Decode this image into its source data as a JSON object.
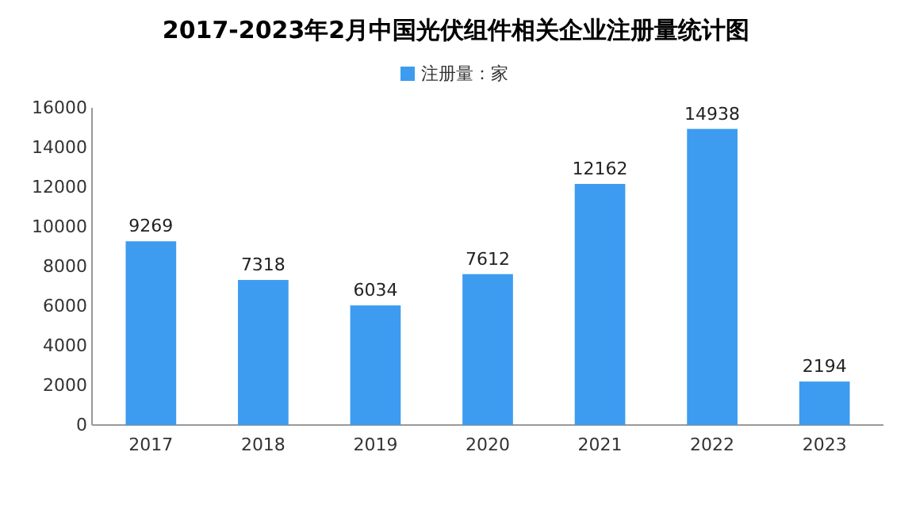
{
  "chart_data": {
    "type": "bar",
    "title": "2017-2023年2月中国光伏组件相关企业注册量统计图",
    "categories": [
      "2017",
      "2018",
      "2019",
      "2020",
      "2021",
      "2022",
      "2023"
    ],
    "series": [
      {
        "name": "注册量：家",
        "color": "#3d9cf0",
        "values": [
          9269,
          7318,
          6034,
          7612,
          12162,
          14938,
          2194
        ]
      }
    ],
    "ylim": [
      0,
      16000
    ],
    "yticks": [
      0,
      2000,
      4000,
      6000,
      8000,
      10000,
      12000,
      14000,
      16000
    ],
    "grid": false,
    "legend": "top",
    "data_labels": true
  }
}
